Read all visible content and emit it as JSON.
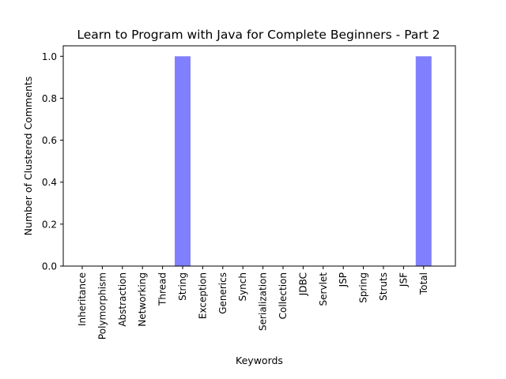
{
  "chart_data": {
    "type": "bar",
    "title": "Learn to Program with Java for Complete Beginners - Part 2",
    "xlabel": "Keywords",
    "ylabel": "Number of Clustered Comments",
    "categories": [
      "Inheritance",
      "Polymorphism",
      "Abstraction",
      "Networking",
      "Thread",
      "String",
      "Exception",
      "Generics",
      "Synch",
      "Serialization",
      "Collection",
      "JDBC",
      "Servlet",
      "JSP",
      "Spring",
      "Struts",
      "JSF",
      "Total"
    ],
    "values": [
      0,
      0,
      0,
      0,
      0,
      1,
      0,
      0,
      0,
      0,
      0,
      0,
      0,
      0,
      0,
      0,
      0,
      1
    ],
    "ylim": [
      0,
      1.05
    ],
    "yticks": [
      "0.0",
      "0.2",
      "0.4",
      "0.6",
      "0.8",
      "1.0"
    ],
    "grid": false,
    "bar_color": "#8080ff"
  }
}
